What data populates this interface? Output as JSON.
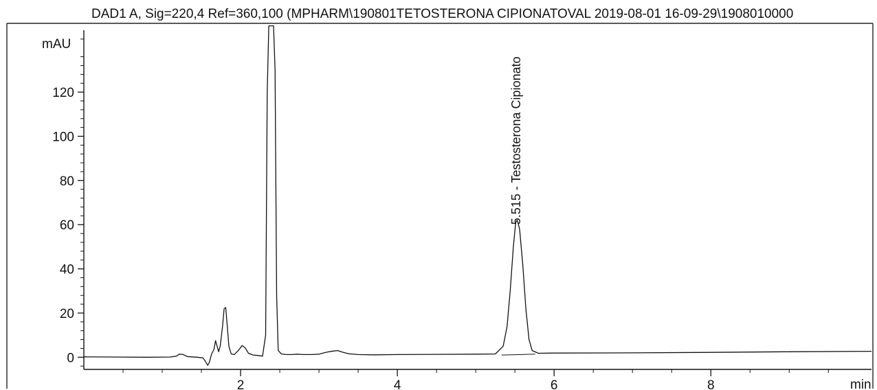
{
  "chart_data": {
    "type": "line",
    "title": "DAD1 A, Sig=220,4 Ref=360,100 (MPHARM\\190801TETOSTERONA CIPIONATOVAL 2019-08-01 16-09-29\\1908010000",
    "xlabel": "min",
    "ylabel": "mAU",
    "xlim": [
      0,
      10.05
    ],
    "ylim": [
      -5.5,
      148
    ],
    "x_ticks": [
      2,
      4,
      6,
      8
    ],
    "y_ticks": [
      0,
      20,
      40,
      60,
      80,
      100,
      120
    ],
    "grid": false,
    "series": [
      {
        "x": [
          0.0,
          0.4,
          0.8,
          1.1,
          1.18,
          1.22,
          1.26,
          1.32,
          1.45,
          1.52,
          1.55,
          1.58,
          1.6,
          1.63,
          1.66,
          1.68,
          1.7,
          1.72,
          1.74,
          1.77,
          1.79,
          1.81,
          1.83,
          1.85,
          1.88,
          1.92,
          1.97,
          2.02,
          2.06,
          2.1,
          2.16,
          2.22,
          2.28,
          2.32,
          2.34,
          2.36,
          2.38,
          2.4,
          2.42,
          2.44,
          2.46,
          2.48,
          2.52,
          2.58,
          2.65,
          2.72,
          2.8,
          2.9,
          3.0,
          3.1,
          3.18,
          3.24,
          3.3,
          3.38,
          3.5,
          3.7,
          4.0,
          4.5,
          5.0,
          5.25,
          5.35,
          5.4,
          5.44,
          5.48,
          5.51,
          5.53,
          5.56,
          5.6,
          5.64,
          5.68,
          5.72,
          5.8,
          6.0,
          7.0,
          8.0,
          9.0,
          10.05
        ],
        "y": [
          0.2,
          0.1,
          0.0,
          0.1,
          0.5,
          1.4,
          1.3,
          0.3,
          0.0,
          -0.3,
          -1.8,
          -3.6,
          -2.5,
          1.5,
          3.5,
          7.5,
          5.0,
          2.5,
          5.0,
          14.0,
          22.0,
          22.5,
          14.0,
          5.0,
          1.5,
          1.2,
          3.0,
          5.3,
          4.2,
          1.8,
          1.0,
          0.8,
          0.5,
          10.0,
          120.0,
          150.0,
          150.0,
          150.0,
          150.0,
          130.0,
          28.0,
          3.0,
          1.5,
          1.2,
          1.2,
          1.4,
          1.2,
          1.2,
          1.4,
          2.3,
          2.8,
          3.0,
          2.3,
          1.6,
          1.2,
          1.1,
          1.2,
          1.3,
          1.4,
          1.5,
          5.0,
          14.0,
          30.0,
          50.0,
          61.0,
          62.0,
          58.0,
          42.0,
          22.0,
          8.0,
          3.0,
          1.8,
          1.9,
          2.0,
          2.2,
          2.5,
          2.7
        ]
      }
    ],
    "annotations": [
      {
        "x": 5.515,
        "text": "5.515 - Testosterona Cipionato"
      }
    ]
  }
}
